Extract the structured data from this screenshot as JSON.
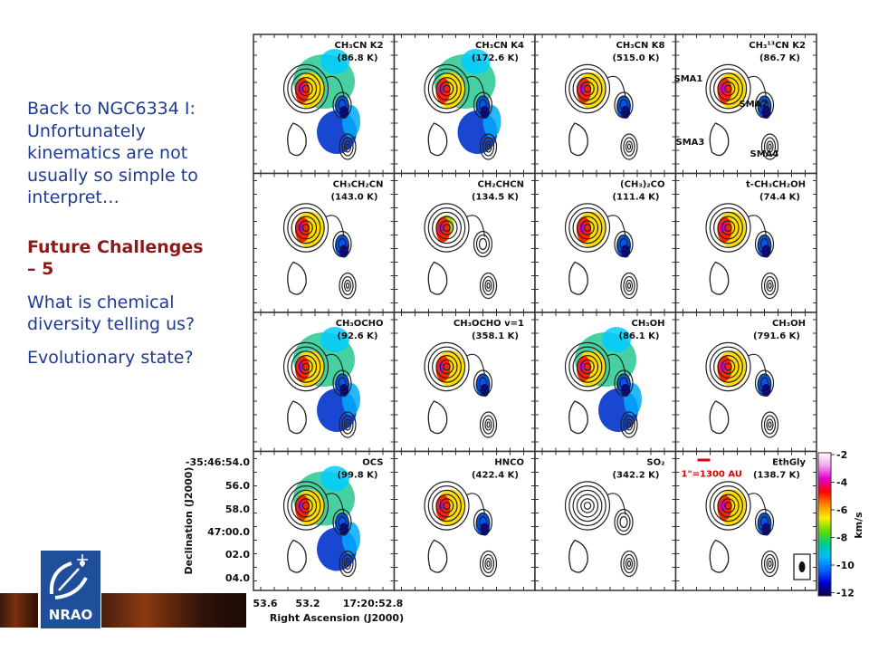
{
  "slide": {
    "intro_lines": [
      "Back to NGC6334 I:",
      "Unfortunately",
      "kinematics are not",
      "usually so simple to",
      "interpret…"
    ],
    "challenge_lines": [
      "Future Challenges",
      "– 5"
    ],
    "question_lines": [
      "What is chemical",
      "diversity telling us?"
    ],
    "state_line": "Evolutionary state?"
  },
  "logo": {
    "text": "NRAO"
  },
  "figure": {
    "panels": [
      {
        "label": "CH₃CN K2",
        "temp": "(86.8 K)",
        "extent": "large"
      },
      {
        "label": "CH₃CN K4",
        "temp": "(172.6 K)",
        "extent": "large"
      },
      {
        "label": "CH₃CN K8",
        "temp": "(515.0 K)",
        "extent": "small"
      },
      {
        "label": "CH₃¹³CN K2",
        "temp": "(86.7 K)",
        "extent": "small"
      },
      {
        "label": "CH₃CH₂CN",
        "temp": "(143.0 K)",
        "extent": "small"
      },
      {
        "label": "CH₂CHCN",
        "temp": "(134.5 K)",
        "extent": "tiny"
      },
      {
        "label": "(CH₃)₂CO",
        "temp": "(111.4 K)",
        "extent": "small"
      },
      {
        "label": "t-CH₃CH₂OH",
        "temp": "(74.4 K)",
        "extent": "small"
      },
      {
        "label": "CH₃OCHO",
        "temp": "(92.6 K)",
        "extent": "large"
      },
      {
        "label": "CH₃OCHO v=1",
        "temp": "(358.1 K)",
        "extent": "small"
      },
      {
        "label": "CH₃OH",
        "temp": "(86.1 K)",
        "extent": "large"
      },
      {
        "label": "CH₃OH",
        "temp": "(791.6 K)",
        "extent": "small"
      },
      {
        "label": "OCS",
        "temp": "(99.8 K)",
        "extent": "large"
      },
      {
        "label": "HNCO",
        "temp": "(422.4 K)",
        "extent": "small"
      },
      {
        "label": "SO₂",
        "temp": "(342.2 K)",
        "extent": "none"
      },
      {
        "label": "EthGly",
        "temp": "(138.7 K)",
        "extent": "small"
      }
    ],
    "sources": [
      "SMA1",
      "SMA2",
      "SMA3",
      "SMA4"
    ],
    "scalebar": "1\"=1300 AU",
    "ylabel": "Declination (J2000)",
    "xlabel": "Right Ascension (J2000)",
    "yticks": [
      "-35:46:54.0",
      "56.0",
      "58.0",
      "47:00.0",
      "02.0",
      "04.0"
    ],
    "xticks": [
      "53.6",
      "53.2",
      "17:20:52.8"
    ],
    "colorbar": {
      "label": "km/s",
      "ticks": [
        "-2",
        "-4",
        "-6",
        "-8",
        "-10",
        "-12"
      ],
      "colors": [
        "#ffffff",
        "#f2a0f2",
        "#e000d0",
        "#ff0000",
        "#ff8800",
        "#ffee00",
        "#66dd00",
        "#00cc88",
        "#00bbff",
        "#0066ff",
        "#0000cc",
        "#000044"
      ]
    }
  }
}
